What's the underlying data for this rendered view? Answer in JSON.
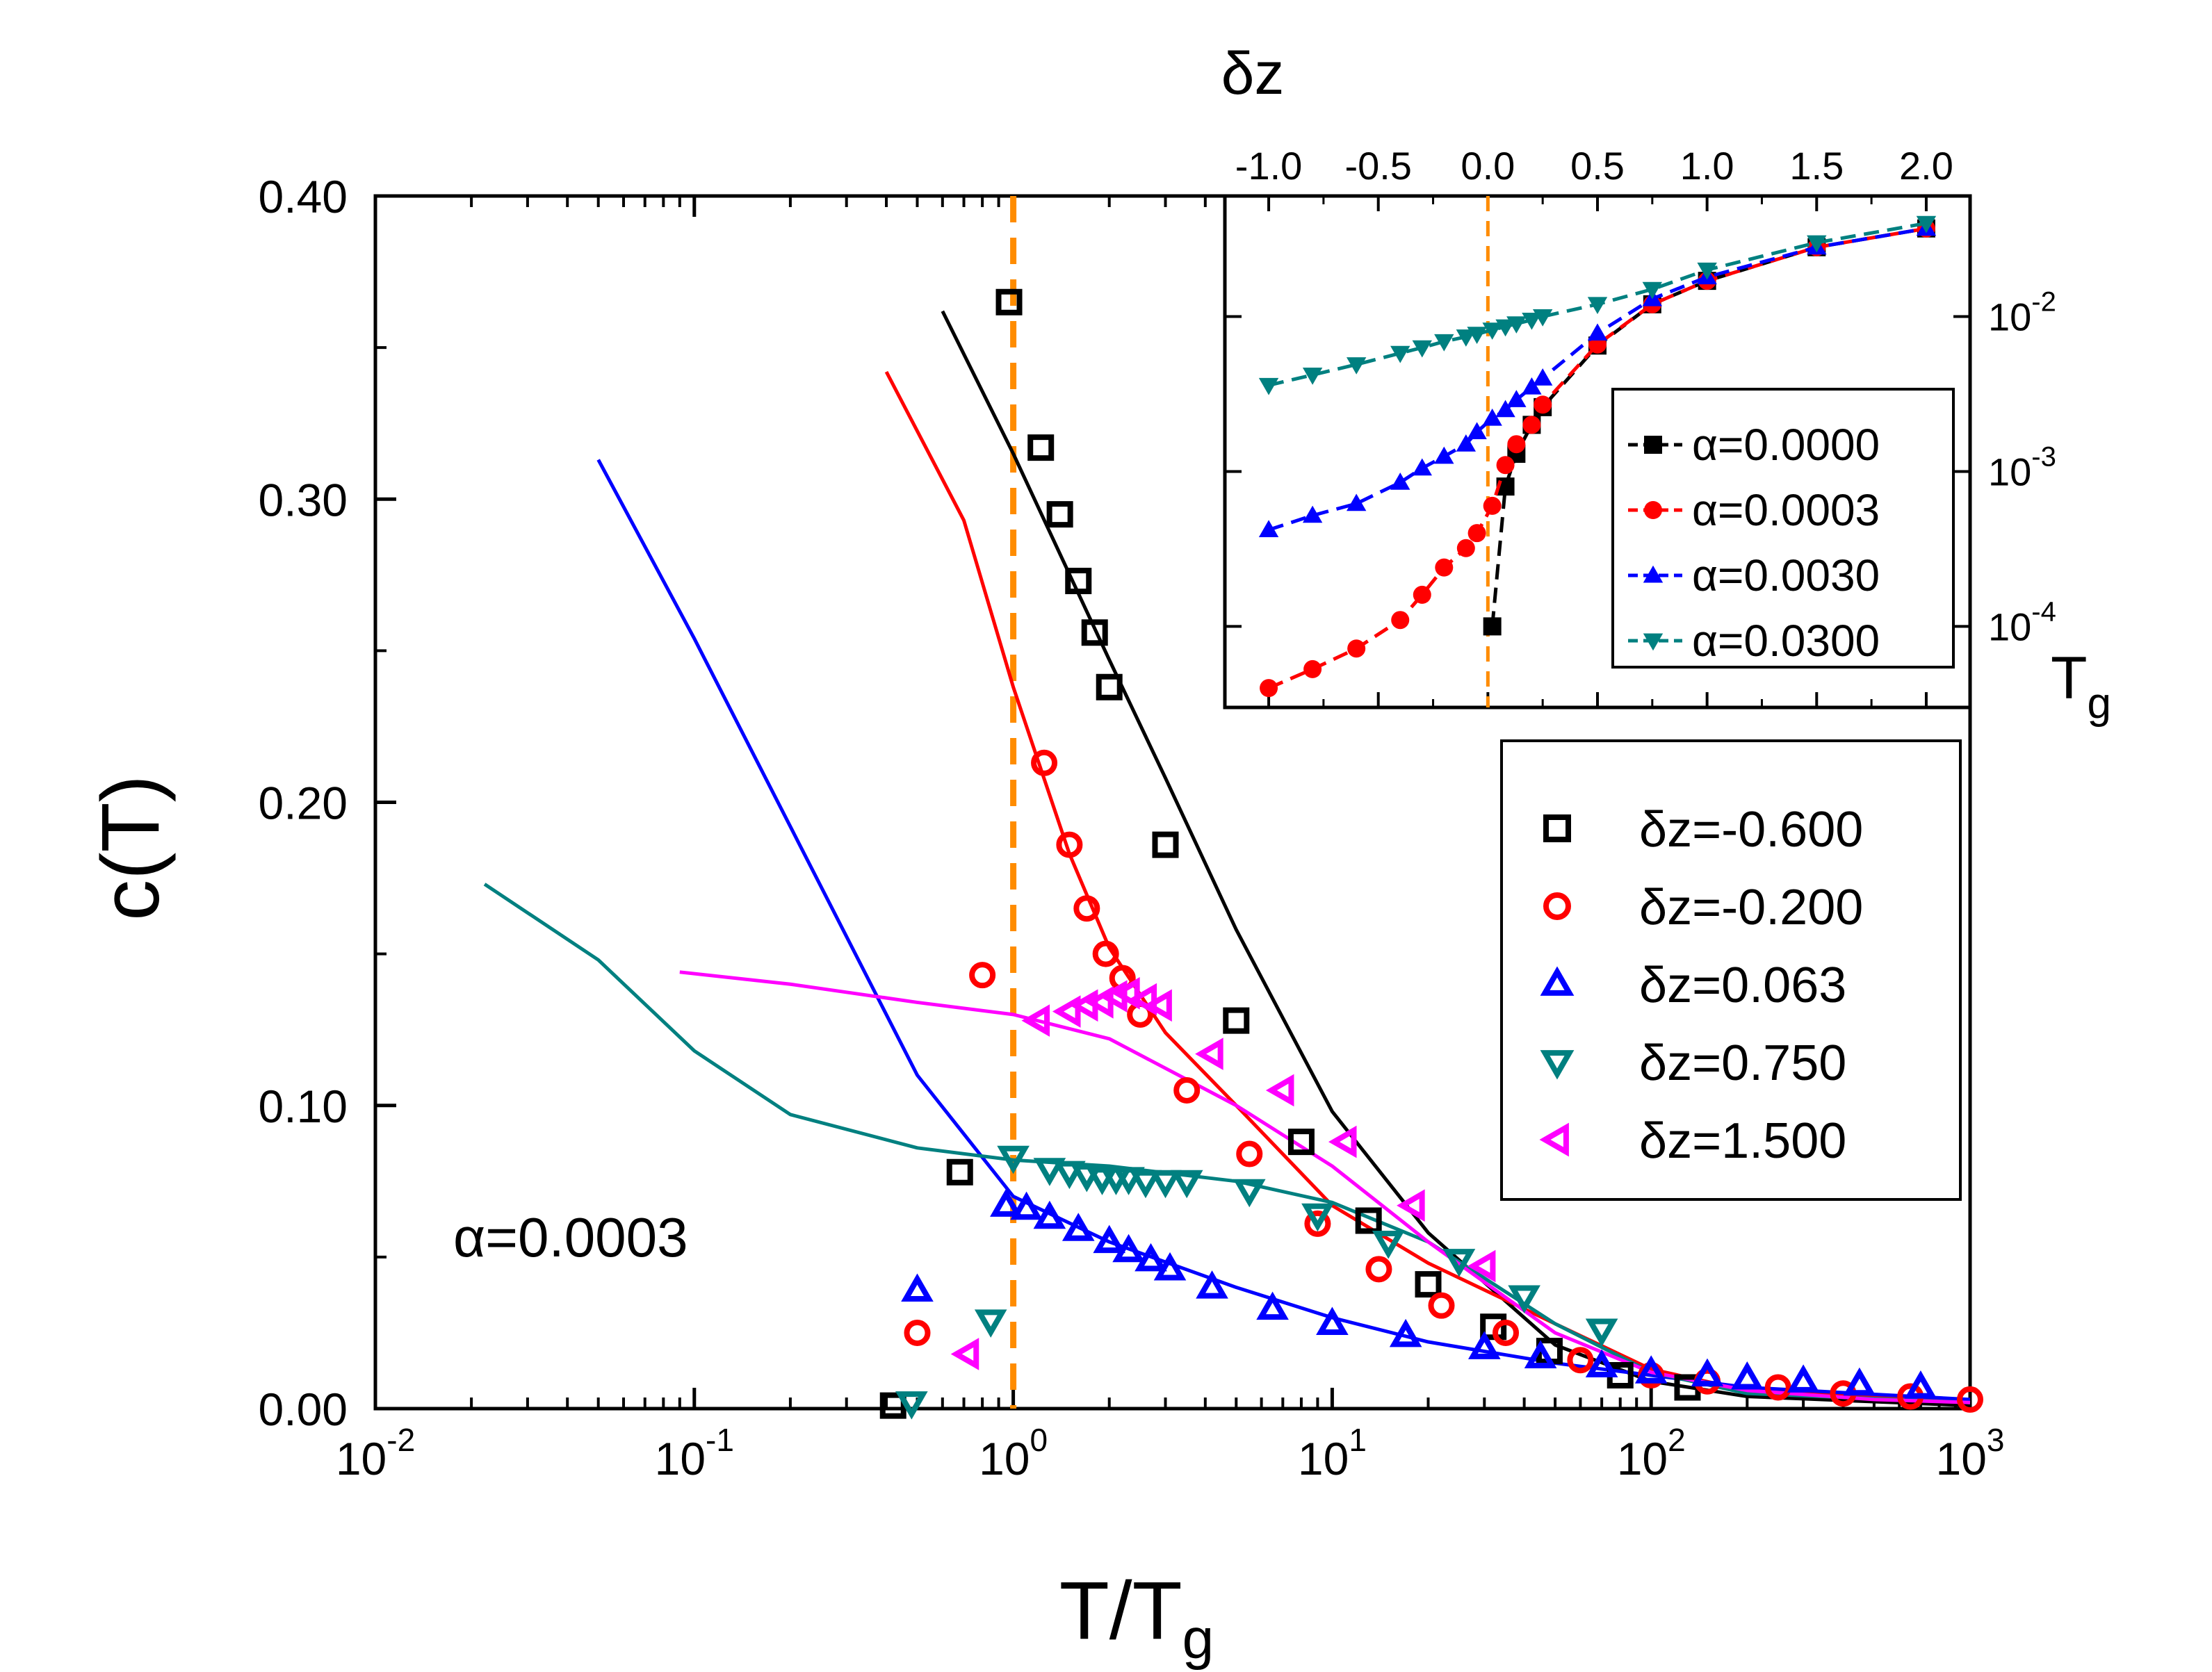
{
  "chart_data": [
    {
      "type": "scatter",
      "title": "",
      "xlabel": "T/T",
      "xlabel_sub": "g",
      "ylabel": "c(T)",
      "xscale": "log",
      "xlim": [
        0.01,
        1000
      ],
      "ylim": [
        0.0,
        0.4
      ],
      "x_ticks": [
        {
          "base": "10",
          "exp": "-2"
        },
        {
          "base": "10",
          "exp": "-1"
        },
        {
          "base": "10",
          "exp": "0"
        },
        {
          "base": "10",
          "exp": "1"
        },
        {
          "base": "10",
          "exp": "2"
        },
        {
          "base": "10",
          "exp": "3"
        }
      ],
      "y_ticks": [
        "0.00",
        "0.10",
        "0.20",
        "0.30",
        "0.40"
      ],
      "grid": false,
      "annotation": "α=0.0003",
      "reference_line": {
        "x": 1.0,
        "color": "#ff8c00",
        "style": "dashed"
      },
      "legend_position": "right",
      "series": [
        {
          "name": "δz=-0.600",
          "color": "#000000",
          "marker": "square",
          "x": [
            0.42,
            0.68,
            0.97,
            1.22,
            1.4,
            1.6,
            1.8,
            2.0,
            3.0,
            5.0,
            8.0,
            13.0,
            20.0,
            32.0,
            48.0,
            80.0,
            130.0
          ],
          "y": [
            0.001,
            0.078,
            0.365,
            0.317,
            0.295,
            0.273,
            0.256,
            0.238,
            0.186,
            0.128,
            0.088,
            0.062,
            0.041,
            0.027,
            0.019,
            0.011,
            0.007
          ],
          "fit_x": [
            0.6,
            1,
            2,
            3,
            5,
            10,
            20,
            50,
            100,
            200,
            1000
          ],
          "fit_y": [
            0.362,
            0.315,
            0.247,
            0.208,
            0.158,
            0.098,
            0.058,
            0.021,
            0.009,
            0.004,
            0.001
          ]
        },
        {
          "name": "δz=-0.200",
          "color": "#ff0000",
          "marker": "circle",
          "x": [
            0.5,
            0.8,
            1.25,
            1.5,
            1.7,
            1.95,
            2.2,
            2.5,
            3.5,
            5.5,
            9.0,
            14.0,
            22.0,
            35.0,
            60.0,
            100.0,
            150.0,
            250.0,
            400.0,
            650.0,
            1000.0
          ],
          "y": [
            0.025,
            0.143,
            0.213,
            0.186,
            0.165,
            0.15,
            0.142,
            0.13,
            0.105,
            0.084,
            0.061,
            0.046,
            0.034,
            0.025,
            0.016,
            0.011,
            0.009,
            0.007,
            0.005,
            0.004,
            0.003
          ],
          "fit_x": [
            0.4,
            0.7,
            1,
            1.5,
            2,
            3,
            5,
            10,
            20,
            50,
            100,
            200,
            1000
          ],
          "fit_y": [
            0.342,
            0.293,
            0.238,
            0.183,
            0.152,
            0.124,
            0.1,
            0.067,
            0.048,
            0.028,
            0.013,
            0.006,
            0.002
          ]
        },
        {
          "name": "δz=0.063",
          "color": "#0000ff",
          "marker": "triangle-up",
          "x": [
            0.5,
            0.95,
            1.1,
            1.3,
            1.6,
            2.0,
            2.3,
            2.7,
            3.1,
            4.2,
            6.5,
            10.0,
            17.0,
            30.0,
            45.0,
            70.0,
            100.0,
            150.0,
            200.0,
            300.0,
            450.0,
            700.0
          ],
          "y": [
            0.039,
            0.067,
            0.066,
            0.063,
            0.059,
            0.055,
            0.052,
            0.049,
            0.046,
            0.04,
            0.033,
            0.028,
            0.024,
            0.02,
            0.017,
            0.014,
            0.012,
            0.011,
            0.01,
            0.009,
            0.008,
            0.007
          ],
          "fit_x": [
            0.05,
            0.1,
            0.2,
            0.5,
            1,
            2,
            5,
            10,
            20,
            50,
            100,
            200,
            1000
          ],
          "fit_y": [
            0.313,
            0.254,
            0.192,
            0.11,
            0.07,
            0.055,
            0.04,
            0.03,
            0.022,
            0.015,
            0.011,
            0.007,
            0.003
          ]
        },
        {
          "name": "δz=0.750",
          "color": "#008080",
          "marker": "triangle-down",
          "x": [
            0.48,
            0.85,
            1.0,
            1.3,
            1.5,
            1.7,
            1.9,
            2.1,
            2.3,
            2.6,
            3.0,
            3.5,
            5.5,
            9.0,
            15.0,
            25.0,
            40.0,
            70.0
          ],
          "y": [
            0.002,
            0.029,
            0.083,
            0.079,
            0.078,
            0.077,
            0.076,
            0.076,
            0.076,
            0.075,
            0.075,
            0.075,
            0.072,
            0.064,
            0.055,
            0.049,
            0.037,
            0.026
          ],
          "fit_x": [
            0.022,
            0.05,
            0.1,
            0.2,
            0.5,
            1,
            2,
            5,
            10,
            20,
            50,
            100,
            200,
            1000
          ],
          "fit_y": [
            0.173,
            0.148,
            0.118,
            0.097,
            0.086,
            0.082,
            0.08,
            0.075,
            0.068,
            0.055,
            0.028,
            0.012,
            0.005,
            0.002
          ]
        },
        {
          "name": "δz=1.500",
          "color": "#ff00ff",
          "marker": "triangle-left",
          "x": [
            0.72,
            1.2,
            1.5,
            1.7,
            1.9,
            2.1,
            2.3,
            2.6,
            2.9,
            4.2,
            7.0,
            11.0,
            18.0,
            30.0
          ],
          "y": [
            0.018,
            0.128,
            0.131,
            0.133,
            0.134,
            0.136,
            0.137,
            0.135,
            0.133,
            0.117,
            0.105,
            0.088,
            0.067,
            0.047
          ],
          "fit_x": [
            0.09,
            0.2,
            0.5,
            1,
            2,
            5,
            10,
            20,
            50,
            100,
            200,
            500,
            1000
          ],
          "fit_y": [
            0.144,
            0.14,
            0.134,
            0.13,
            0.122,
            0.1,
            0.08,
            0.055,
            0.025,
            0.012,
            0.006,
            0.003,
            0.002
          ]
        }
      ]
    },
    {
      "type": "line",
      "title": "",
      "xlabel": "δz",
      "ylabel": "T",
      "ylabel_sub": "g",
      "yscale": "log",
      "xlim": [
        -1.2,
        2.2
      ],
      "ylim": [
        3e-05,
        0.06
      ],
      "x_ticks": [
        "-1.0",
        "-0.5",
        "0.0",
        "0.5",
        "1.0",
        "1.5",
        "2.0"
      ],
      "y_ticks": [
        {
          "base": "10",
          "exp": "-4"
        },
        {
          "base": "10",
          "exp": "-3"
        },
        {
          "base": "10",
          "exp": "-2"
        }
      ],
      "reference_line": {
        "x": 0.0,
        "color": "#ff8c00",
        "style": "dashed"
      },
      "legend_position": "center-right",
      "series": [
        {
          "name": "α=0.0000",
          "color": "#000000",
          "marker": "square",
          "x": [
            0.02,
            0.08,
            0.13,
            0.2,
            0.25,
            0.5,
            0.75,
            1.0,
            1.5,
            2.0
          ],
          "y": [
            0.0001,
            0.0008,
            0.0013,
            0.002,
            0.0026,
            0.0065,
            0.012,
            0.017,
            0.028,
            0.037
          ]
        },
        {
          "name": "α=0.0003",
          "color": "#ff0000",
          "marker": "circle",
          "x": [
            -1.0,
            -0.8,
            -0.6,
            -0.4,
            -0.3,
            -0.2,
            -0.1,
            -0.05,
            0.02,
            0.08,
            0.13,
            0.2,
            0.25,
            0.5,
            0.75,
            1.0,
            1.5,
            2.0
          ],
          "y": [
            4e-05,
            5.3e-05,
            7.2e-05,
            0.00011,
            0.00016,
            0.00024,
            0.00032,
            0.0004,
            0.0006,
            0.0011,
            0.0015,
            0.002,
            0.0027,
            0.0066,
            0.012,
            0.017,
            0.028,
            0.037
          ]
        },
        {
          "name": "α=0.0030",
          "color": "#0000ff",
          "marker": "triangle-up",
          "x": [
            -1.0,
            -0.8,
            -0.6,
            -0.4,
            -0.3,
            -0.2,
            -0.1,
            -0.05,
            0.02,
            0.08,
            0.13,
            0.2,
            0.25,
            0.5,
            0.75,
            1.0,
            1.5,
            2.0
          ],
          "y": [
            0.00042,
            0.00052,
            0.00062,
            0.00085,
            0.00105,
            0.00125,
            0.0015,
            0.0018,
            0.0022,
            0.0025,
            0.0029,
            0.0035,
            0.004,
            0.0078,
            0.013,
            0.018,
            0.028,
            0.037
          ]
        },
        {
          "name": "α=0.0300",
          "color": "#008080",
          "marker": "triangle-down",
          "x": [
            -1.0,
            -0.8,
            -0.6,
            -0.4,
            -0.3,
            -0.2,
            -0.1,
            -0.05,
            0.02,
            0.08,
            0.13,
            0.2,
            0.25,
            0.5,
            0.75,
            1.0,
            1.5,
            2.0
          ],
          "y": [
            0.0036,
            0.0042,
            0.0049,
            0.0058,
            0.0063,
            0.0069,
            0.0074,
            0.0077,
            0.0082,
            0.0086,
            0.009,
            0.0095,
            0.01,
            0.012,
            0.015,
            0.02,
            0.03,
            0.04
          ]
        }
      ]
    }
  ]
}
